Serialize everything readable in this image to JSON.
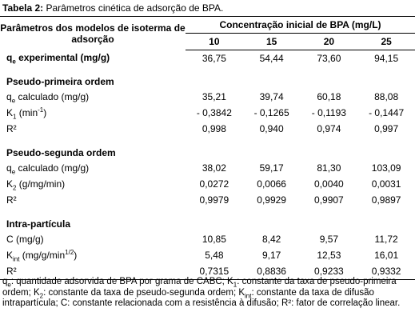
{
  "caption": {
    "label": "Tabela 2:",
    "text": " Parâmetros cinética de adsorção de BPA."
  },
  "table": {
    "header": {
      "param": "Parâmetros dos modelos de isoterma de adsorção",
      "group": "Concentração inicial de BPA (mg/L)",
      "columns": [
        "10",
        "15",
        "20",
        "25"
      ]
    },
    "rows": [
      {
        "label": [
          {
            "text": "q"
          },
          {
            "text": "e",
            "script": "sub"
          },
          {
            "text": " experimental (mg/g)"
          }
        ],
        "bold": true,
        "values": [
          "36,75",
          "54,44",
          "73,60",
          "94,15"
        ]
      },
      {
        "section": "Pseudo-primeira ordem"
      },
      {
        "label": [
          {
            "text": "q"
          },
          {
            "text": "e",
            "script": "sub"
          },
          {
            "text": " calculado (mg/g)"
          }
        ],
        "values": [
          "35,21",
          "39,74",
          "60,18",
          "88,08"
        ]
      },
      {
        "label": [
          {
            "text": "K"
          },
          {
            "text": "1",
            "script": "sub"
          },
          {
            "text": " (min"
          },
          {
            "text": "-1",
            "script": "sup"
          },
          {
            "text": ")"
          }
        ],
        "values": [
          "- 0,3842",
          "- 0,1265",
          "- 0,1193",
          "- 0,1447"
        ]
      },
      {
        "label": [
          {
            "text": "R²"
          }
        ],
        "values": [
          "0,998",
          "0,940",
          "0,974",
          "0,997"
        ]
      },
      {
        "section": "Pseudo-segunda ordem"
      },
      {
        "label": [
          {
            "text": "q"
          },
          {
            "text": "e",
            "script": "sub"
          },
          {
            "text": " calculado (mg/g)"
          }
        ],
        "values": [
          "38,02",
          "59,17",
          "81,30",
          "103,09"
        ]
      },
      {
        "label": [
          {
            "text": "K"
          },
          {
            "text": "2",
            "script": "sub"
          },
          {
            "text": " (g/mg/min)"
          }
        ],
        "values": [
          "0,0272",
          "0,0066",
          "0,0040",
          "0,0031"
        ]
      },
      {
        "label": [
          {
            "text": "R²"
          }
        ],
        "values": [
          "0,9979",
          "0,9929",
          "0,9907",
          "0,9897"
        ]
      },
      {
        "section": "Intra-partícula"
      },
      {
        "label": [
          {
            "text": "C (mg/g)"
          }
        ],
        "values": [
          "10,85",
          "8,42",
          "9,57",
          "11,72"
        ]
      },
      {
        "label": [
          {
            "text": "K"
          },
          {
            "text": "int",
            "script": "sub"
          },
          {
            "text": " (mg/g/min"
          },
          {
            "text": "1/2",
            "script": "sup"
          },
          {
            "text": ")"
          }
        ],
        "values": [
          "5,48",
          "9,17",
          "12,53",
          "16,01"
        ]
      },
      {
        "label": [
          {
            "text": "R²"
          }
        ],
        "values": [
          "0,7315",
          "0,8836",
          "0,9233",
          "0,9332"
        ]
      }
    ]
  },
  "footnote": [
    {
      "text": "q"
    },
    {
      "text": "e",
      "script": "sub"
    },
    {
      "text": ": quantidade adsorvida de BPA por grama de CABC; K"
    },
    {
      "text": "1",
      "script": "sub"
    },
    {
      "text": ": constante da taxa de pseudo-primeira ordem; K"
    },
    {
      "text": "2",
      "script": "sub"
    },
    {
      "text": ": constante da taxa de pseudo-segunda ordem; K"
    },
    {
      "text": "int",
      "script": "sub"
    },
    {
      "text": ": constante da taxa de difusão intrapartícula; C: constante relacionada com a resistência à difusão; R²: fator de correlação linear."
    }
  ]
}
